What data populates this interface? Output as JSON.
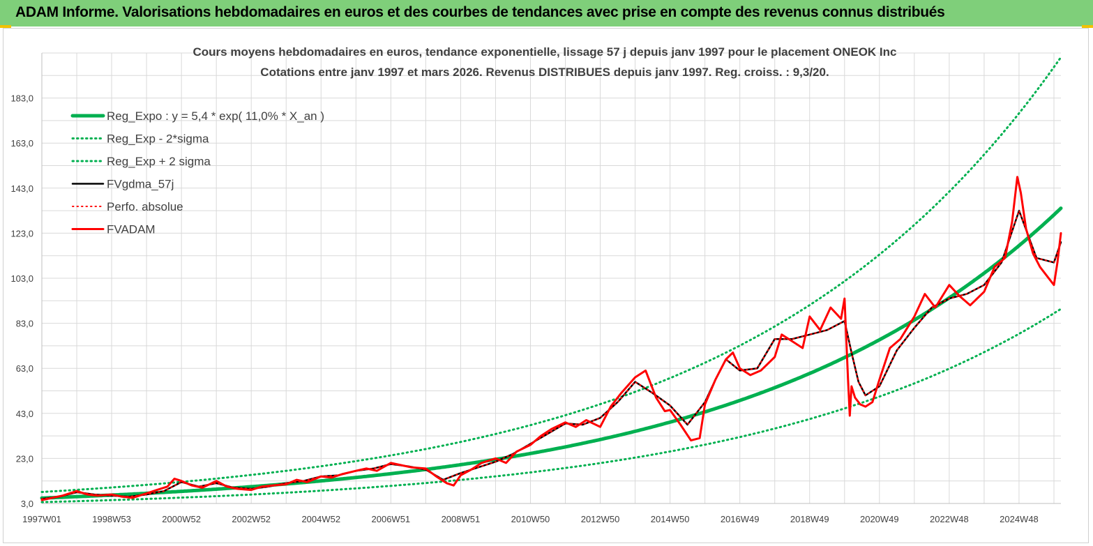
{
  "header": {
    "title": "ADAM Informe. Valorisations hebdomadaires en euros et des courbes de tendances avec prise en compte des revenus connus distribués"
  },
  "colors": {
    "banner": "#7fcf7a",
    "reg_expo": "#00b050",
    "fvgdma": "#000000",
    "fvadam": "#ff0000",
    "perfo": "#ff0000"
  },
  "chart_data": {
    "type": "line",
    "title": "Cours moyens  hebdomadaires en euros, tendance exponentielle, lissage 57 j depuis janv 1997 pour le placement ONEOK Inc",
    "subtitle": "Cotations entre janv 1997 et mars 2026. Revenus DISTRIBUES depuis janv 1997. Reg. croiss. : 9,3/20.",
    "xlabel": "",
    "ylabel": "",
    "ylim": [
      3,
      203
    ],
    "xlim": [
      1997.0,
      2026.2
    ],
    "grid": true,
    "legend_position": "top-left",
    "y_ticks": [
      "3,0",
      "23,0",
      "43,0",
      "63,0",
      "83,0",
      "103,0",
      "123,0",
      "143,0",
      "163,0",
      "183,0"
    ],
    "x_ticks": [
      {
        "label": "1997W01",
        "x": 1997.0
      },
      {
        "label": "1998W53",
        "x": 1999.0
      },
      {
        "label": "2000W52",
        "x": 2001.0
      },
      {
        "label": "2002W52",
        "x": 2003.0
      },
      {
        "label": "2004W52",
        "x": 2005.0
      },
      {
        "label": "2006W51",
        "x": 2007.0
      },
      {
        "label": "2008W51",
        "x": 2009.0
      },
      {
        "label": "2010W50",
        "x": 2011.0
      },
      {
        "label": "2012W50",
        "x": 2013.0
      },
      {
        "label": "2014W50",
        "x": 2015.0
      },
      {
        "label": "2016W49",
        "x": 2017.0
      },
      {
        "label": "2018W49",
        "x": 2019.0
      },
      {
        "label": "2020W49",
        "x": 2021.0
      },
      {
        "label": "2022W48",
        "x": 2023.0
      },
      {
        "label": "2024W48",
        "x": 2025.0
      }
    ],
    "series": [
      {
        "name": "Reg_Expo : y = 5,4 * exp( 11,0% *  X_an )",
        "color": "#00b050",
        "style": "solid",
        "width": 5,
        "function": {
          "a": 5.4,
          "b": 0.11,
          "x0": 1997.0
        }
      },
      {
        "name": "Reg_Exp - 2*sigma",
        "color": "#00b050",
        "style": "dotted",
        "width": 3,
        "function": {
          "a": 3.6,
          "b": 0.11,
          "x0": 1997.0
        }
      },
      {
        "name": "Reg_Exp + 2 sigma",
        "color": "#00b050",
        "style": "dotted",
        "width": 3,
        "function": {
          "a": 8.1,
          "b": 0.11,
          "x0": 1997.0
        }
      },
      {
        "name": "FVgdma_57j",
        "color": "#000000",
        "style": "solid",
        "width": 2.5,
        "x": [
          1997.0,
          1997.5,
          1998.0,
          1998.5,
          1999.0,
          1999.5,
          2000.0,
          2000.5,
          2001.0,
          2001.5,
          2002.0,
          2002.5,
          2003.0,
          2003.5,
          2004.0,
          2004.5,
          2005.0,
          2005.5,
          2006.0,
          2006.5,
          2007.0,
          2007.5,
          2008.0,
          2008.5,
          2009.0,
          2009.5,
          2010.0,
          2010.5,
          2011.0,
          2011.5,
          2012.0,
          2012.5,
          2013.0,
          2013.5,
          2014.0,
          2014.5,
          2015.0,
          2015.5,
          2016.0,
          2016.3,
          2016.6,
          2017.0,
          2017.5,
          2018.0,
          2018.5,
          2019.0,
          2019.5,
          2020.0,
          2020.2,
          2020.4,
          2020.6,
          2021.0,
          2021.5,
          2022.0,
          2022.5,
          2023.0,
          2023.5,
          2024.0,
          2024.5,
          2025.0,
          2025.5,
          2026.0,
          2026.2
        ],
        "y": [
          5.0,
          6.0,
          8.0,
          7.0,
          6.5,
          6.0,
          7.0,
          8.5,
          12.5,
          10.5,
          12.0,
          10.0,
          9.5,
          10.5,
          12.0,
          13.0,
          15.0,
          15.5,
          17.5,
          18.5,
          20.5,
          19.5,
          18.0,
          13.5,
          16.5,
          19.0,
          21.5,
          25.0,
          29.5,
          34.0,
          38.5,
          38.0,
          41.0,
          48.0,
          57.0,
          52.0,
          46.5,
          38.0,
          48.0,
          58.0,
          67.0,
          62.0,
          63.0,
          76.0,
          76.0,
          78.0,
          80.0,
          84.0,
          70.0,
          57.0,
          51.0,
          55.0,
          71.0,
          81.0,
          90.0,
          94.0,
          96.0,
          100.0,
          110.0,
          133.0,
          112.0,
          110.0,
          119.0
        ]
      },
      {
        "name": "Perfo. absolue",
        "color": "#ff0000",
        "style": "dotted",
        "width": 2,
        "x": [
          1997.0,
          1997.5,
          1998.0,
          1998.5,
          1999.0,
          1999.5,
          2000.0,
          2000.5,
          2001.0,
          2001.5,
          2002.0,
          2002.5,
          2003.0,
          2003.5,
          2004.0,
          2004.5,
          2005.0,
          2005.5,
          2006.0,
          2006.5,
          2007.0,
          2007.5,
          2008.0,
          2008.5,
          2009.0,
          2009.5,
          2010.0,
          2010.5,
          2011.0,
          2011.5,
          2012.0,
          2012.5,
          2013.0,
          2013.5,
          2014.0,
          2014.5,
          2015.0,
          2015.5,
          2016.0,
          2016.3,
          2016.6,
          2017.0,
          2017.5,
          2018.0,
          2018.5,
          2019.0,
          2019.5,
          2020.0,
          2020.2,
          2020.4,
          2020.6,
          2021.0,
          2021.5,
          2022.0,
          2022.5,
          2023.0,
          2023.5,
          2024.0,
          2024.5,
          2025.0,
          2025.5,
          2026.0,
          2026.2
        ],
        "y": [
          5.0,
          6.0,
          8.0,
          7.0,
          6.5,
          6.0,
          7.0,
          8.5,
          12.5,
          10.5,
          12.0,
          10.0,
          9.5,
          10.5,
          12.0,
          13.0,
          15.0,
          15.5,
          17.5,
          18.5,
          20.5,
          19.5,
          18.0,
          13.5,
          16.5,
          19.0,
          21.5,
          25.0,
          29.5,
          34.0,
          38.5,
          38.0,
          41.0,
          48.0,
          57.0,
          52.0,
          46.5,
          38.0,
          48.0,
          58.0,
          67.0,
          62.0,
          63.0,
          76.0,
          76.0,
          78.0,
          80.0,
          84.0,
          70.0,
          57.0,
          51.0,
          55.0,
          71.0,
          81.0,
          90.0,
          94.0,
          96.0,
          100.0,
          110.0,
          133.0,
          112.0,
          110.0,
          119.0
        ]
      },
      {
        "name": "FVADAM",
        "color": "#ff0000",
        "style": "solid",
        "width": 3,
        "x": [
          1997.0,
          1997.3,
          1997.6,
          1998.0,
          1998.3,
          1998.6,
          1999.0,
          1999.3,
          1999.6,
          2000.0,
          2000.3,
          2000.6,
          2000.8,
          2001.0,
          2001.3,
          2001.6,
          2002.0,
          2002.3,
          2002.6,
          2003.0,
          2003.3,
          2003.6,
          2004.0,
          2004.3,
          2004.6,
          2005.0,
          2005.3,
          2005.6,
          2006.0,
          2006.3,
          2006.6,
          2007.0,
          2007.3,
          2007.6,
          2008.0,
          2008.3,
          2008.6,
          2008.8,
          2009.0,
          2009.3,
          2009.6,
          2010.0,
          2010.3,
          2010.6,
          2011.0,
          2011.3,
          2011.6,
          2012.0,
          2012.3,
          2012.6,
          2013.0,
          2013.3,
          2013.6,
          2014.0,
          2014.3,
          2014.6,
          2014.85,
          2015.0,
          2015.3,
          2015.6,
          2015.85,
          2016.0,
          2016.3,
          2016.6,
          2016.8,
          2017.0,
          2017.3,
          2017.6,
          2018.0,
          2018.2,
          2018.5,
          2018.8,
          2019.0,
          2019.3,
          2019.6,
          2019.9,
          2020.0,
          2020.1,
          2020.15,
          2020.2,
          2020.3,
          2020.45,
          2020.6,
          2020.8,
          2021.0,
          2021.3,
          2021.6,
          2022.0,
          2022.3,
          2022.6,
          2023.0,
          2023.3,
          2023.6,
          2024.0,
          2024.3,
          2024.6,
          2024.8,
          2024.95,
          2025.05,
          2025.2,
          2025.4,
          2025.6,
          2025.8,
          2026.0,
          2026.1,
          2026.2
        ],
        "y": [
          4.5,
          5.5,
          6.5,
          8.5,
          7.0,
          6.5,
          7.0,
          6.0,
          5.5,
          7.5,
          9.0,
          10.5,
          14.0,
          13.0,
          11.0,
          10.0,
          13.0,
          10.5,
          9.5,
          9.0,
          10.5,
          11.0,
          11.5,
          13.5,
          12.5,
          15.0,
          14.5,
          16.0,
          17.5,
          18.5,
          17.5,
          21.0,
          20.0,
          19.0,
          18.5,
          15.0,
          12.0,
          11.0,
          15.5,
          18.0,
          21.0,
          23.0,
          21.0,
          26.0,
          29.0,
          33.0,
          36.0,
          39.0,
          37.0,
          40.0,
          37.0,
          46.0,
          52.0,
          59.0,
          62.0,
          50.0,
          44.0,
          44.5,
          38.0,
          31.0,
          32.0,
          47.0,
          58.0,
          67.0,
          70.0,
          63.0,
          60.0,
          62.0,
          68.0,
          78.0,
          75.0,
          72.0,
          86.0,
          80.0,
          90.0,
          85.0,
          94.0,
          58.0,
          42.0,
          55.0,
          50.0,
          47.0,
          46.0,
          48.0,
          58.0,
          72.0,
          76.0,
          86.0,
          96.0,
          90.0,
          100.0,
          95.0,
          91.0,
          97.0,
          108.0,
          112.0,
          128.0,
          148.0,
          141.0,
          125.0,
          114.0,
          108.0,
          104.0,
          100.0,
          110.0,
          123.0
        ]
      }
    ]
  }
}
